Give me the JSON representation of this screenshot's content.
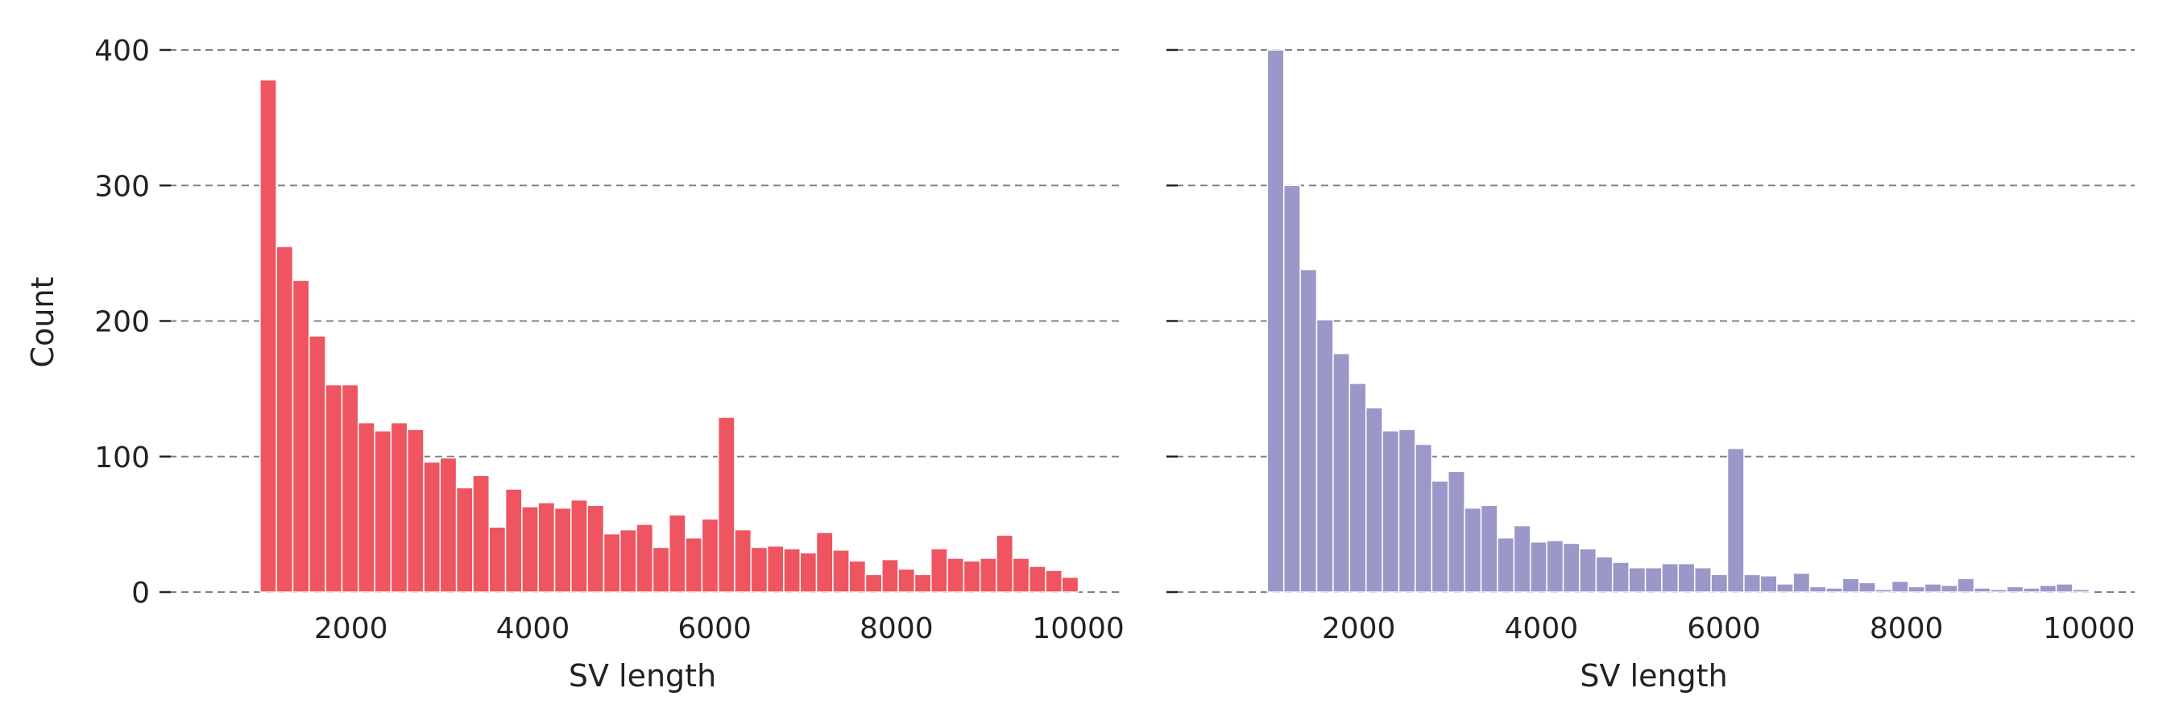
{
  "chart_data": [
    {
      "type": "bar",
      "histogram": true,
      "xlabel": "SV length",
      "ylabel": "Count",
      "xlim": [
        0,
        10500
      ],
      "ylim": [
        0,
        400
      ],
      "xticks": [
        "2000",
        "4000",
        "6000",
        "8000",
        "10000"
      ],
      "yticks": [
        "0",
        "100",
        "200",
        "300",
        "400"
      ],
      "grid": "y-dashed",
      "color": "#ef5560",
      "bin_start": 1000,
      "bin_width": 180,
      "values": [
        378,
        255,
        230,
        189,
        153,
        153,
        125,
        119,
        125,
        120,
        96,
        99,
        77,
        86,
        48,
        76,
        63,
        66,
        62,
        68,
        64,
        43,
        46,
        50,
        33,
        57,
        40,
        54,
        129,
        46,
        33,
        34,
        32,
        29,
        44,
        31,
        23,
        13,
        24,
        17,
        13,
        32,
        25,
        23,
        25,
        42,
        25,
        19,
        16,
        11
      ]
    },
    {
      "type": "bar",
      "histogram": true,
      "xlabel": "SV length",
      "ylabel": "",
      "xlim": [
        0,
        10500
      ],
      "ylim": [
        0,
        400
      ],
      "xticks": [
        "2000",
        "4000",
        "6000",
        "8000",
        "10000"
      ],
      "yticks": [],
      "grid": "y-dashed",
      "color": "#9b97c8",
      "bin_start": 1000,
      "bin_width": 180,
      "values": [
        400,
        300,
        238,
        201,
        176,
        154,
        136,
        119,
        120,
        109,
        82,
        89,
        62,
        64,
        40,
        49,
        37,
        38,
        36,
        32,
        26,
        22,
        18,
        18,
        21,
        21,
        18,
        13,
        106,
        13,
        12,
        6,
        14,
        4,
        3,
        10,
        7,
        2,
        8,
        4,
        6,
        5,
        10,
        3,
        2,
        4,
        3,
        5,
        6,
        2
      ]
    }
  ]
}
